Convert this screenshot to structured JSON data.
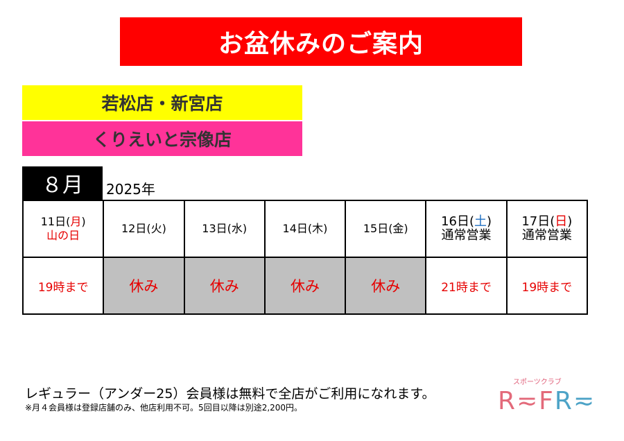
{
  "title": "お盆休みのご案内",
  "stores": {
    "line1": "若松店・新宮店",
    "line2": "くりえいと宗像店"
  },
  "month": "８月",
  "year": "2025年",
  "days": [
    {
      "date": "11日(",
      "dow": "月",
      "close": ")",
      "note": "山の日",
      "status": "19時まで"
    },
    {
      "date": "12日(火)",
      "status": "休み"
    },
    {
      "date": "13日(水)",
      "status": "休み"
    },
    {
      "date": "14日(木)",
      "status": "休み"
    },
    {
      "date": "15日(金)",
      "status": "休み"
    },
    {
      "date": "16日(",
      "dow": "土",
      "close": ")",
      "note": "通常営業",
      "status": "21時まで"
    },
    {
      "date": "17日(",
      "dow": "日",
      "close": ")",
      "note": "通常営業",
      "status": "19時まで"
    }
  ],
  "footer": {
    "main": "レギュラー（アンダー25）会員様は無料で全店がご利用になれます。",
    "note": "※月４会員様は登録店舗のみ、他店利用不可。5回目以降は別途2,200円。"
  },
  "logo": {
    "sub": "スポーツクラブ",
    "part1": "R≂F",
    "part2": "R≂"
  },
  "colors": {
    "banner": "#ff0000",
    "store1_bg": "#ffff00",
    "store2_bg": "#ff3399",
    "closed_bg": "#c0c0c0",
    "status_text": "#e60000",
    "saturday": "#1f6fc2"
  }
}
